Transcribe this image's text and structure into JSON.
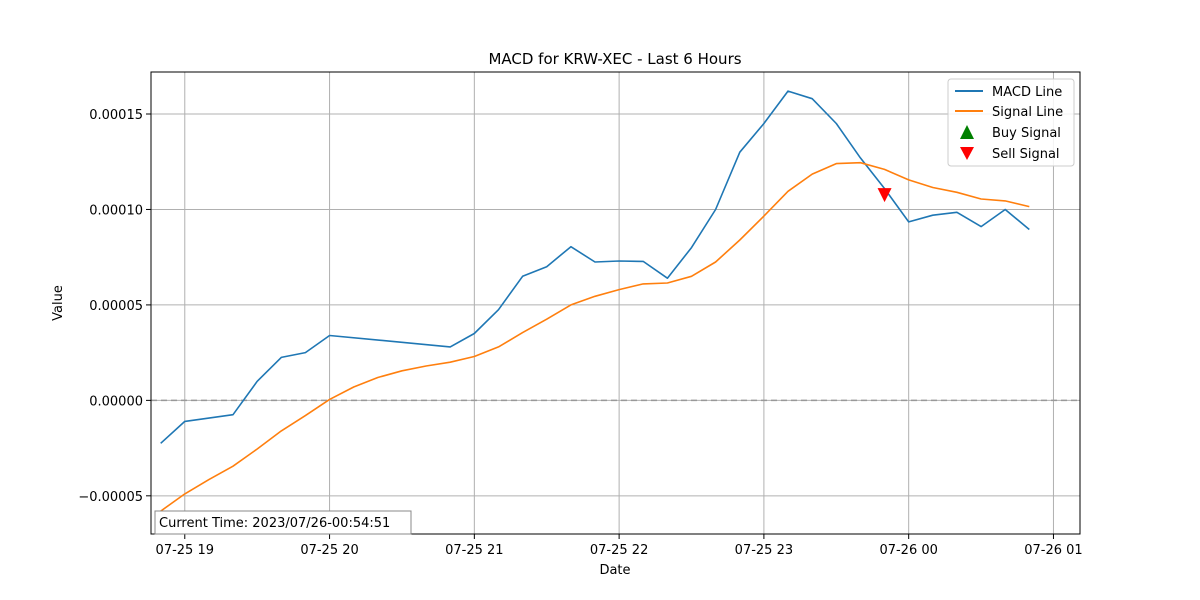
{
  "chart_data": {
    "type": "line",
    "title": "MACD for KRW-XEC - Last 6 Hours",
    "xlabel": "Date",
    "ylabel": "Value",
    "xlim": [
      "2023-07-25 18:46",
      "2023-07-26 01:11"
    ],
    "ylim": [
      -7e-05,
      0.000172
    ],
    "x_ticks": [
      {
        "t": "2023-07-25 19:00",
        "label": "07-25 19"
      },
      {
        "t": "2023-07-25 20:00",
        "label": "07-25 20"
      },
      {
        "t": "2023-07-25 21:00",
        "label": "07-25 21"
      },
      {
        "t": "2023-07-25 22:00",
        "label": "07-25 22"
      },
      {
        "t": "2023-07-25 23:00",
        "label": "07-25 23"
      },
      {
        "t": "2023-07-26 00:00",
        "label": "07-26 00"
      },
      {
        "t": "2023-07-26 01:00",
        "label": "07-26 01"
      }
    ],
    "y_ticks": [
      {
        "v": -5e-05,
        "label": "−0.00005"
      },
      {
        "v": 0,
        "label": "0.00000"
      },
      {
        "v": 5e-05,
        "label": "0.00005"
      },
      {
        "v": 0.0001,
        "label": "0.00010"
      },
      {
        "v": 0.00015,
        "label": "0.00015"
      }
    ],
    "grid": true,
    "zero_line": {
      "y": 0,
      "style": "dashed",
      "color": "#999999"
    },
    "legend_position": "upper right",
    "series": [
      {
        "name": "MACD Line",
        "color": "#1f77b4",
        "points": [
          [
            "2023-07-25 18:50",
            -2.25e-05
          ],
          [
            "2023-07-25 19:00",
            -1.1e-05
          ],
          [
            "2023-07-25 19:20",
            -7.5e-06
          ],
          [
            "2023-07-25 19:30",
            1e-05
          ],
          [
            "2023-07-25 19:40",
            2.25e-05
          ],
          [
            "2023-07-25 19:50",
            2.5e-05
          ],
          [
            "2023-07-25 20:00",
            3.4e-05
          ],
          [
            "2023-07-25 20:50",
            2.8e-05
          ],
          [
            "2023-07-25 21:00",
            3.5e-05
          ],
          [
            "2023-07-25 21:10",
            4.75e-05
          ],
          [
            "2023-07-25 21:20",
            6.5e-05
          ],
          [
            "2023-07-25 21:30",
            7e-05
          ],
          [
            "2023-07-25 21:40",
            8.05e-05
          ],
          [
            "2023-07-25 21:50",
            7.25e-05
          ],
          [
            "2023-07-25 22:00",
            7.3e-05
          ],
          [
            "2023-07-25 22:10",
            7.28e-05
          ],
          [
            "2023-07-25 22:20",
            6.4e-05
          ],
          [
            "2023-07-25 22:30",
            8e-05
          ],
          [
            "2023-07-25 22:40",
            0.0001
          ],
          [
            "2023-07-25 22:50",
            0.00013
          ],
          [
            "2023-07-25 23:00",
            0.000145
          ],
          [
            "2023-07-25 23:10",
            0.000162
          ],
          [
            "2023-07-25 23:20",
            0.000158
          ],
          [
            "2023-07-25 23:30",
            0.000145
          ],
          [
            "2023-07-25 23:40",
            0.000127
          ],
          [
            "2023-07-25 23:50",
            0.000111
          ],
          [
            "2023-07-26 00:00",
            9.35e-05
          ],
          [
            "2023-07-26 00:10",
            9.7e-05
          ],
          [
            "2023-07-26 00:20",
            9.85e-05
          ],
          [
            "2023-07-26 00:30",
            9.1e-05
          ],
          [
            "2023-07-26 00:40",
            0.0001
          ],
          [
            "2023-07-26 00:50",
            8.95e-05
          ]
        ]
      },
      {
        "name": "Signal Line",
        "color": "#ff7f0e",
        "points": [
          [
            "2023-07-25 18:50",
            -5.8e-05
          ],
          [
            "2023-07-25 19:00",
            -4.9e-05
          ],
          [
            "2023-07-25 19:10",
            -4.15e-05
          ],
          [
            "2023-07-25 19:20",
            -3.45e-05
          ],
          [
            "2023-07-25 19:30",
            -2.55e-05
          ],
          [
            "2023-07-25 19:40",
            -1.6e-05
          ],
          [
            "2023-07-25 19:50",
            -8e-06
          ],
          [
            "2023-07-25 20:00",
            5e-07
          ],
          [
            "2023-07-25 20:10",
            7e-06
          ],
          [
            "2023-07-25 20:20",
            1.2e-05
          ],
          [
            "2023-07-25 20:30",
            1.55e-05
          ],
          [
            "2023-07-25 20:40",
            1.8e-05
          ],
          [
            "2023-07-25 20:50",
            2e-05
          ],
          [
            "2023-07-25 21:00",
            2.3e-05
          ],
          [
            "2023-07-25 21:10",
            2.8e-05
          ],
          [
            "2023-07-25 21:20",
            3.55e-05
          ],
          [
            "2023-07-25 21:30",
            4.25e-05
          ],
          [
            "2023-07-25 21:40",
            5e-05
          ],
          [
            "2023-07-25 21:50",
            5.45e-05
          ],
          [
            "2023-07-25 22:00",
            5.8e-05
          ],
          [
            "2023-07-25 22:10",
            6.1e-05
          ],
          [
            "2023-07-25 22:20",
            6.15e-05
          ],
          [
            "2023-07-25 22:30",
            6.5e-05
          ],
          [
            "2023-07-25 22:40",
            7.25e-05
          ],
          [
            "2023-07-25 22:50",
            8.4e-05
          ],
          [
            "2023-07-25 23:00",
            9.65e-05
          ],
          [
            "2023-07-25 23:10",
            0.0001095
          ],
          [
            "2023-07-25 23:20",
            0.0001185
          ],
          [
            "2023-07-25 23:30",
            0.000124
          ],
          [
            "2023-07-25 23:40",
            0.0001245
          ],
          [
            "2023-07-25 23:50",
            0.000121
          ],
          [
            "2023-07-26 00:00",
            0.0001155
          ],
          [
            "2023-07-26 00:10",
            0.0001115
          ],
          [
            "2023-07-26 00:20",
            0.000109
          ],
          [
            "2023-07-26 00:30",
            0.0001055
          ],
          [
            "2023-07-26 00:40",
            0.0001045
          ],
          [
            "2023-07-26 00:50",
            0.0001015
          ]
        ]
      }
    ],
    "markers": [
      {
        "name": "Buy Signal",
        "color": "#008000",
        "shape": "triangle-up",
        "points": []
      },
      {
        "name": "Sell Signal",
        "color": "#ff0000",
        "shape": "triangle-down",
        "points": [
          [
            "2023-07-25 23:50",
            0.0001075
          ]
        ]
      }
    ],
    "annotation": "Current Time: 2023/07/26-00:54:51"
  }
}
